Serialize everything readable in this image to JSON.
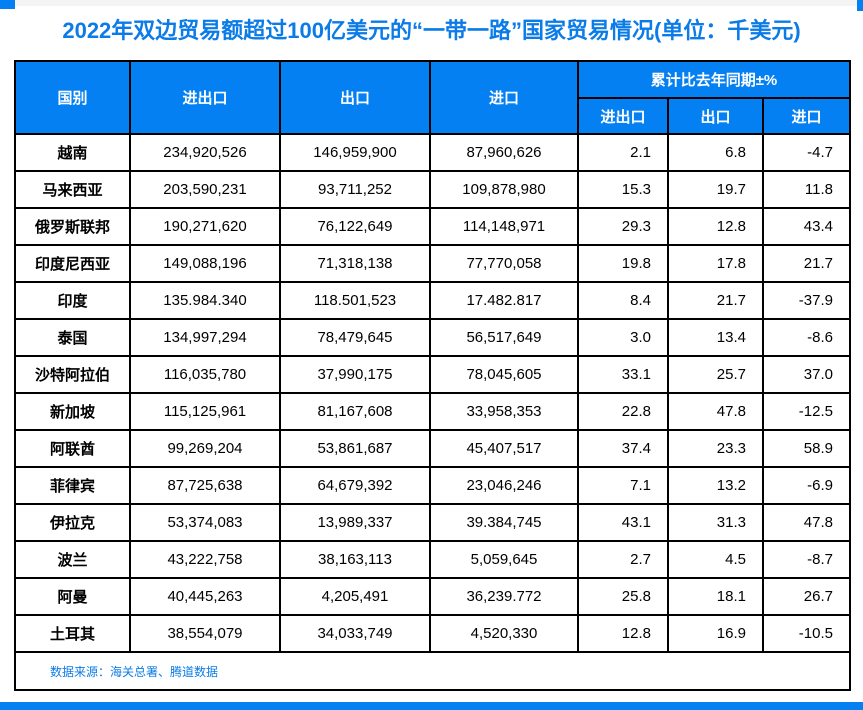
{
  "title": "2022年双边贸易额超过100亿美元的“一带一路”国家贸易情况(单位：千美元)",
  "colors": {
    "header_bg": "#0580F2",
    "title_text": "#0B7BE8",
    "source_text": "#0B7BE8",
    "border": "#000000",
    "accent_bar": "#0580F2"
  },
  "footer": {
    "source": "数据来源：海关总署、腾道数据"
  },
  "chart_data": {
    "type": "table",
    "title": "2022年双边贸易额超过100亿美元的“一带一路”国家贸易情况(单位：千美元)",
    "columns": [
      "国别",
      "进出口",
      "出口",
      "进口"
    ],
    "yoy_group_label": "累计比去年同期±%",
    "yoy_columns": [
      "进出口",
      "出口",
      "进口"
    ],
    "rows": [
      [
        "越南",
        "234,920,526",
        "146,959,900",
        "87,960,626",
        "2.1",
        "6.8",
        "-4.7"
      ],
      [
        "马来西亚",
        "203,590,231",
        "93,711,252",
        "109,878,980",
        "15.3",
        "19.7",
        "11.8"
      ],
      [
        "俄罗斯联邦",
        "190,271,620",
        "76,122,649",
        "114,148,971",
        "29.3",
        "12.8",
        "43.4"
      ],
      [
        "印度尼西亚",
        "149,088,196",
        "71,318,138",
        "77,770,058",
        "19.8",
        "17.8",
        "21.7"
      ],
      [
        "印度",
        "135.984.340",
        "118.501,523",
        "17.482.817",
        "8.4",
        "21.7",
        "-37.9"
      ],
      [
        "泰国",
        "134,997,294",
        "78,479,645",
        "56,517,649",
        "3.0",
        "13.4",
        "-8.6"
      ],
      [
        "沙特阿拉伯",
        "116,035,780",
        "37,990,175",
        "78,045,605",
        "33.1",
        "25.7",
        "37.0"
      ],
      [
        "新加坡",
        "115,125,961",
        "81,167,608",
        "33,958,353",
        "22.8",
        "47.8",
        "-12.5"
      ],
      [
        "阿联酋",
        "99,269,204",
        "53,861,687",
        "45,407,517",
        "37.4",
        "23.3",
        "58.9"
      ],
      [
        "菲律宾",
        "87,725,638",
        "64,679,392",
        "23,046,246",
        "7.1",
        "13.2",
        "-6.9"
      ],
      [
        "伊拉克",
        "53,374,083",
        "13,989,337",
        "39.384,745",
        "43.1",
        "31.3",
        "47.8"
      ],
      [
        "波兰",
        "43,222,758",
        "38,163,113",
        "5,059,645",
        "2.7",
        "4.5",
        "-8.7"
      ],
      [
        "阿曼",
        "40,445,263",
        "4,205,491",
        "36,239.772",
        "25.8",
        "18.1",
        "26.7"
      ],
      [
        "土耳其",
        "38,554,079",
        "34,033,749",
        "4,520,330",
        "12.8",
        "16.9",
        "-10.5"
      ]
    ],
    "source": "数据来源：海关总署、腾道数据"
  }
}
